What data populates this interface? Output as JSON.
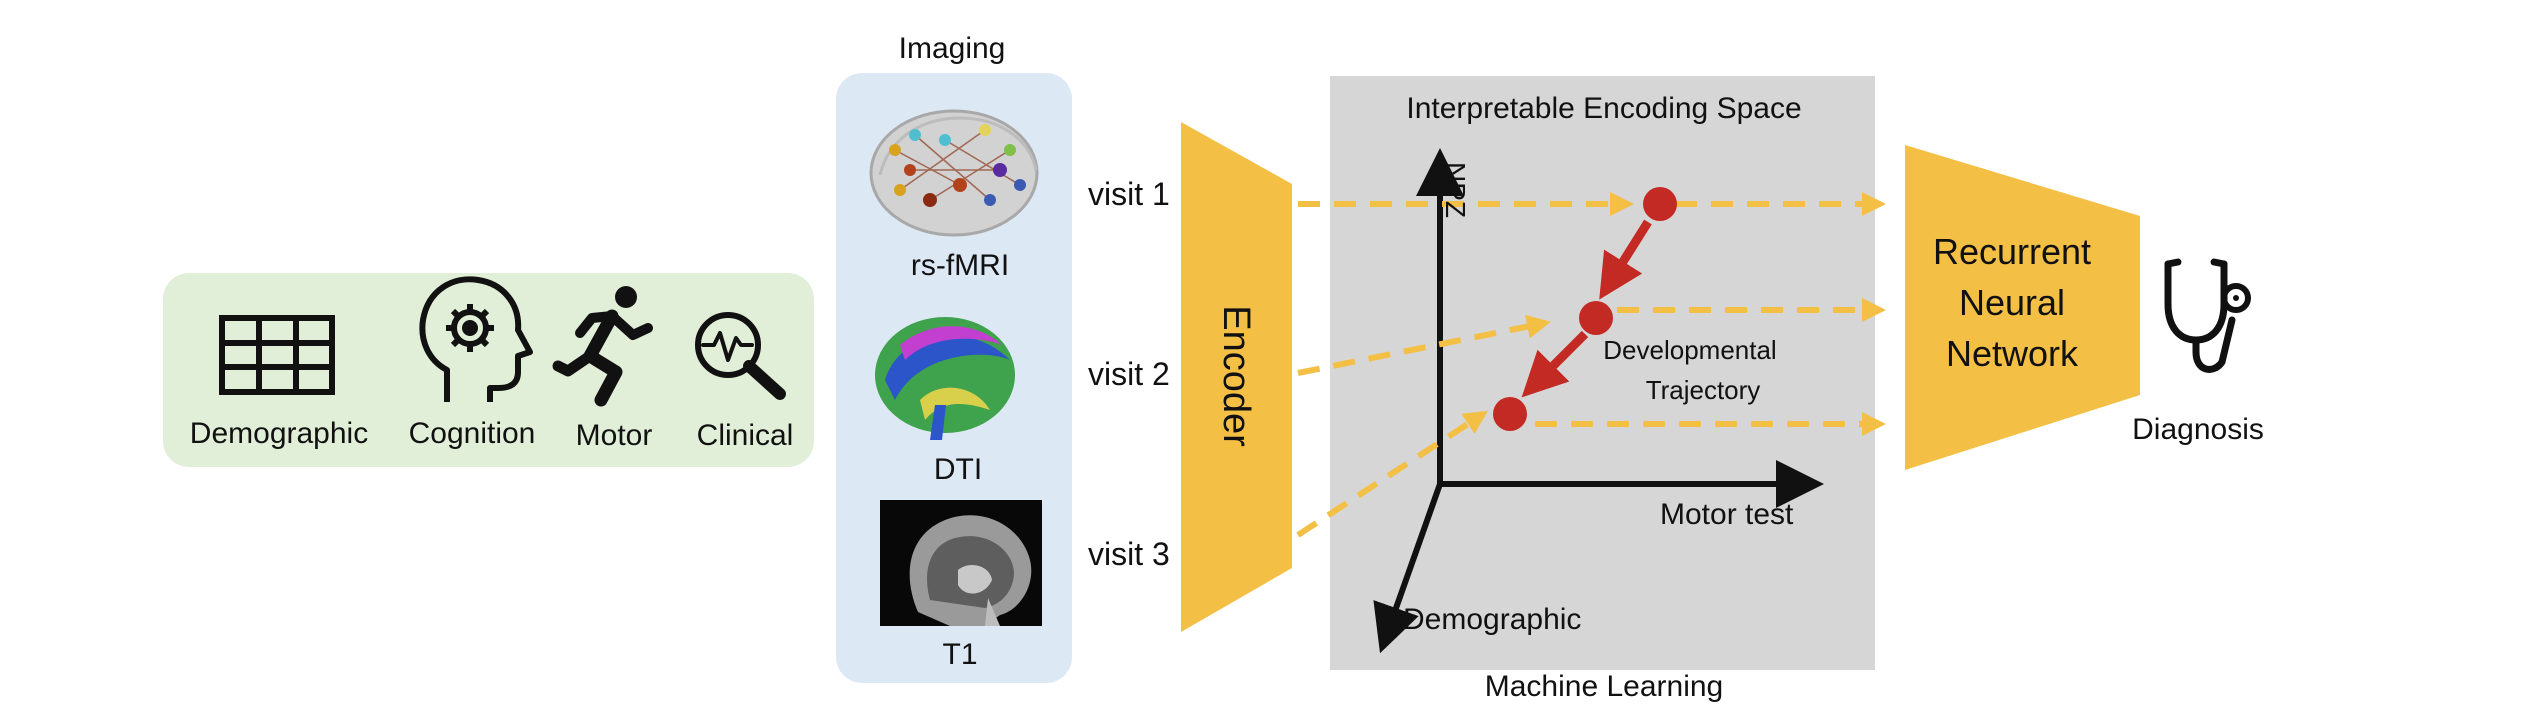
{
  "patient_data": {
    "items": [
      {
        "label": "Demographic",
        "icon": "table-icon"
      },
      {
        "label": "Cognition",
        "icon": "head-gear-icon"
      },
      {
        "label": "Motor",
        "icon": "running-person-icon"
      },
      {
        "label": "Clinical",
        "icon": "magnifier-pulse-icon"
      }
    ]
  },
  "imaging": {
    "title": "Imaging",
    "modalities": [
      {
        "label": "rs-fMRI",
        "icon": "brain-network-icon"
      },
      {
        "label": "DTI",
        "icon": "tractography-icon"
      },
      {
        "label": "T1",
        "icon": "mri-sagittal-icon"
      }
    ]
  },
  "visits": [
    "visit 1",
    "visit 2",
    "visit 3"
  ],
  "encoder": {
    "label": "Encoder"
  },
  "encoding_space": {
    "title": "Interpretable Encoding Space",
    "footer": "Machine Learning",
    "axes": {
      "y": "NPZ",
      "x": "Motor test",
      "z": "Demographic"
    },
    "trajectory_label_line1": "Developmental",
    "trajectory_label_line2": "Trajectory"
  },
  "rnn": {
    "line1": "Recurrent",
    "line2": "Neural",
    "line3": "Network"
  },
  "output": {
    "label": "Diagnosis",
    "icon": "stethoscope-icon"
  },
  "colors": {
    "accent": "#f4bf45",
    "trajectory": "#c42a24",
    "data_panel": "#e1efd8",
    "imaging_panel": "#dce8f4",
    "ml_box": "#d6d6d6"
  }
}
